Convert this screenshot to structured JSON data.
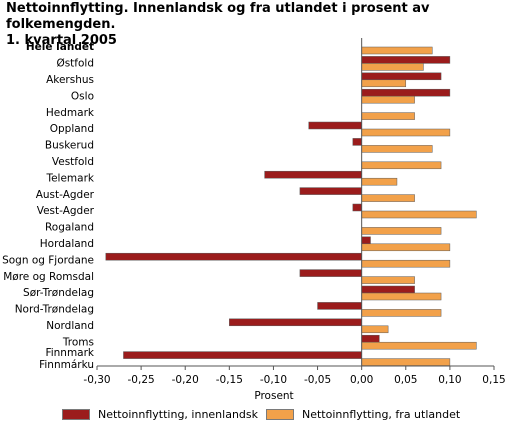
{
  "title_line1": "Nettoinnflytting. Innenlandsk og fra utlandet i prosent av folkemengden.",
  "title_line2": "1. kvartal 2005",
  "chart_data": {
    "type": "bar",
    "orientation": "horizontal",
    "categories": [
      "Hele landet",
      "Østfold",
      "Akershus",
      "Oslo",
      "Hedmark",
      "Oppland",
      "Buskerud",
      "Vestfold",
      "Telemark",
      "Aust-Agder",
      "Vest-Agder",
      "Rogaland",
      "Hordaland",
      "Sogn og Fjordane",
      "Møre og Romsdal",
      "Sør-Trøndelag",
      "Nord-Trøndelag",
      "Nordland",
      "Troms",
      "Finnmark\nFinnmárku"
    ],
    "series": [
      {
        "name": "Nettoinnflytting, innenlandsk",
        "color": "#9b1c1c",
        "values": [
          0,
          0.1,
          0.09,
          0.1,
          0,
          -0.06,
          -0.01,
          0,
          -0.11,
          -0.07,
          -0.01,
          0,
          0.01,
          -0.29,
          -0.07,
          0.06,
          -0.05,
          -0.15,
          0.02,
          -0.27
        ]
      },
      {
        "name": "Nettoinnflytting, fra utlandet",
        "color": "#f2a14a",
        "values": [
          0.08,
          0.07,
          0.05,
          0.06,
          0.06,
          0.1,
          0.08,
          0.09,
          0.04,
          0.06,
          0.13,
          0.09,
          0.1,
          0.1,
          0.06,
          0.09,
          0.09,
          0.03,
          0.13,
          0.1
        ]
      }
    ],
    "xlim": [
      -0.3,
      0.15
    ],
    "xticks": [
      -0.3,
      -0.25,
      -0.2,
      -0.15,
      -0.1,
      -0.05,
      0.0,
      0.05,
      0.1,
      0.15
    ],
    "tick_labels": [
      "-0,30",
      "-0,25",
      "-0,20",
      "-0,15",
      "-0,10",
      "-0,05",
      "0,00",
      "0,05",
      "0,10",
      "0,15"
    ],
    "xlabel": "Prosent",
    "ylabel": "",
    "grid": false,
    "legend_position": "bottom",
    "bold_category": "Hele landet"
  }
}
